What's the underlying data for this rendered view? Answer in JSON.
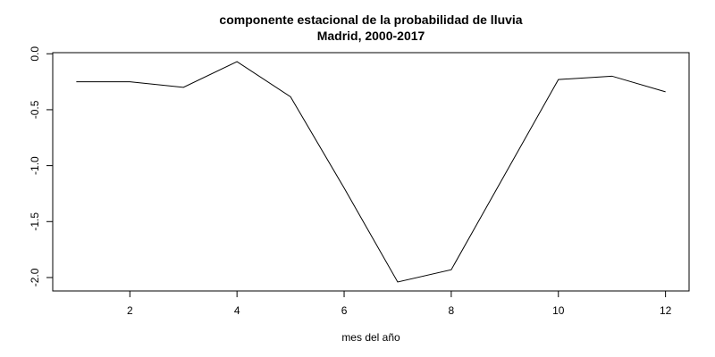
{
  "chart_data": {
    "type": "line",
    "title": "componente estacional de la probabilidad de lluvia",
    "subtitle": "Madrid, 2000-2017",
    "xlabel": "mes del año",
    "ylabel": "",
    "x": [
      1,
      2,
      3,
      4,
      5,
      6,
      7,
      8,
      9,
      10,
      11,
      12
    ],
    "series": [
      {
        "values": [
          -0.25,
          -0.25,
          -0.3,
          -0.07,
          -0.385,
          -1.2,
          -2.04,
          -1.93,
          -1.08,
          -0.23,
          -0.2,
          -0.34
        ],
        "color": "#000000"
      }
    ],
    "xticks": [
      2,
      4,
      6,
      8,
      10,
      12
    ],
    "xtick_labels": [
      "2",
      "4",
      "6",
      "8",
      "10",
      "12"
    ],
    "yticks": [
      0,
      -0.5,
      -1,
      -1.5,
      -2
    ],
    "ytick_labels": [
      "0.0",
      "-0.5",
      "-1.0",
      "-1.5",
      "-2.0"
    ],
    "xlim": [
      0.56,
      12.44
    ],
    "ylim": [
      -2.12,
      0.01
    ],
    "grid": false,
    "legend": "none"
  }
}
